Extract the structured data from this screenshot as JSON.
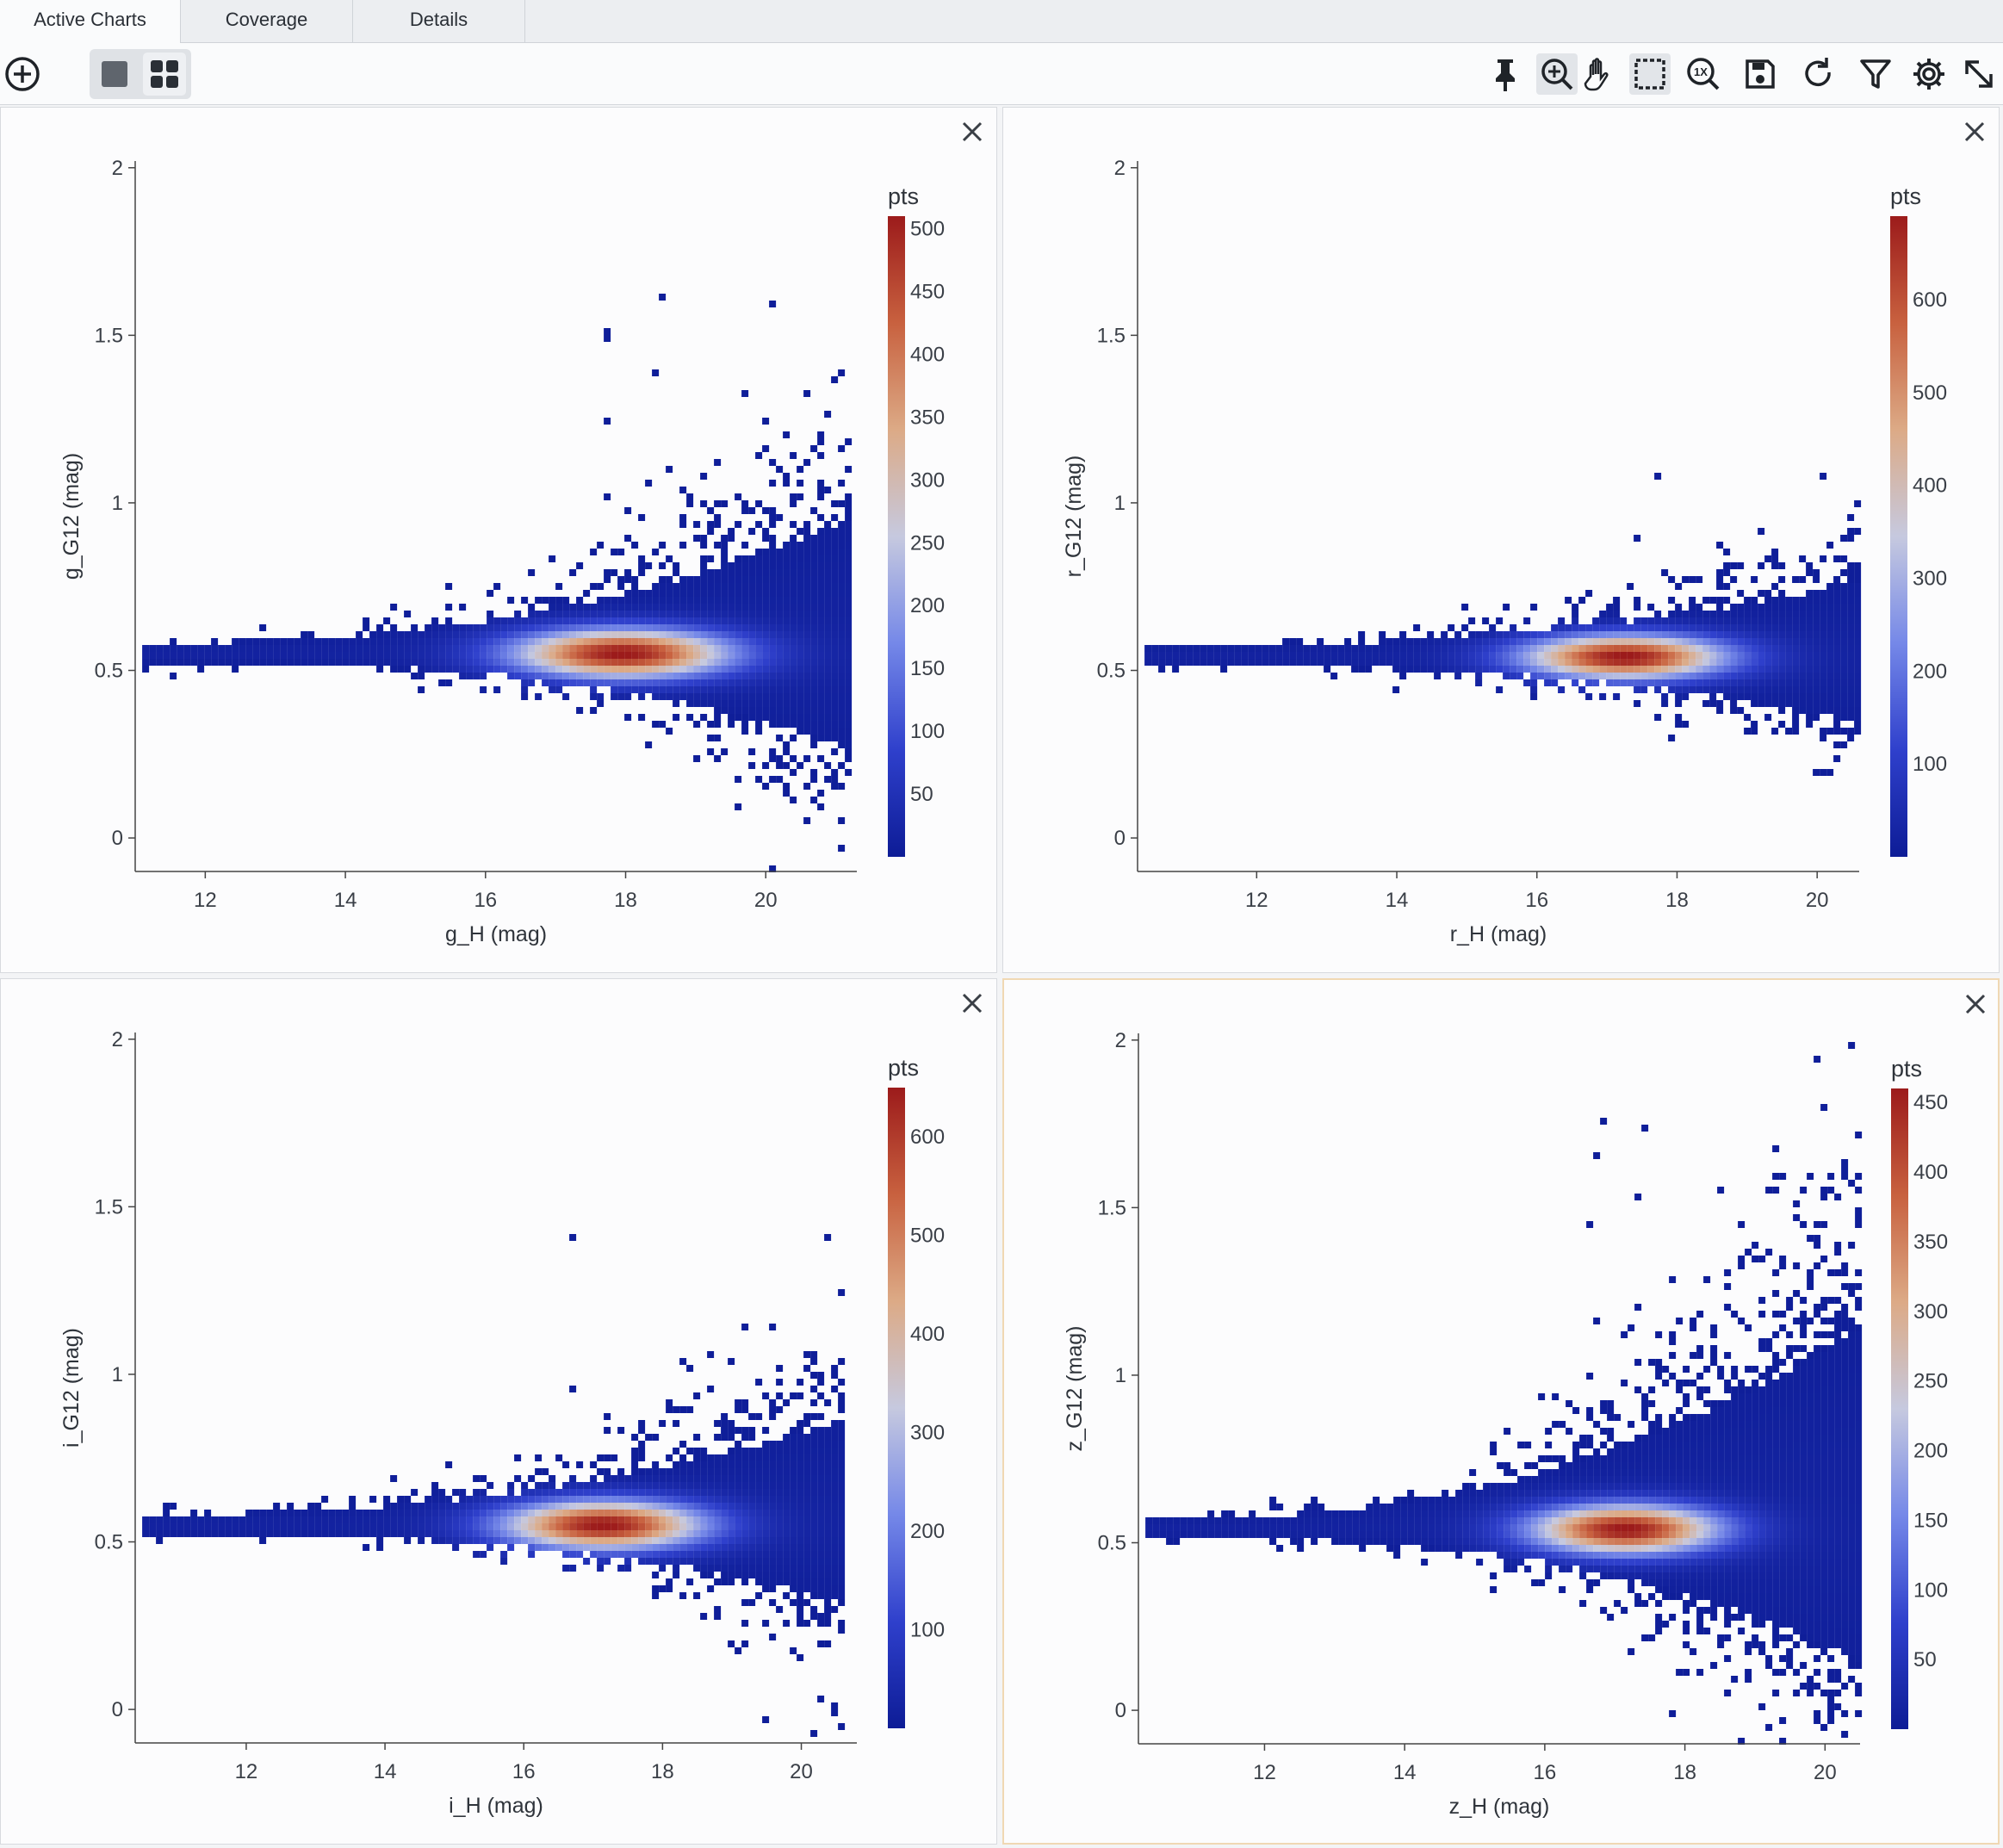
{
  "tabs": [
    {
      "label": "Active Charts",
      "active": true
    },
    {
      "label": "Coverage",
      "active": false
    },
    {
      "label": "Details",
      "active": false
    }
  ],
  "toolbar": {
    "left_icons": [
      "add-chart-icon"
    ],
    "layout_icons": [
      "single-layout-icon",
      "grid-layout-icon"
    ],
    "right_icons": [
      "pin-icon",
      "zoom-in-icon",
      "pan-icon",
      "select-region-icon",
      "zoom-1x-icon",
      "save-icon",
      "restore-icon",
      "filter-icon",
      "settings-icon",
      "expand-icon"
    ]
  },
  "colorscale": [
    "#0d1c96",
    "#2f40cc",
    "#7588e8",
    "#c6c9df",
    "#dcaa86",
    "#c8613f",
    "#9c1b1b"
  ],
  "charts": [
    {
      "type": "heatmap",
      "xlabel": "g_H (mag)",
      "ylabel": "g_G12 (mag)",
      "xlim": [
        11,
        21.3
      ],
      "ylim": [
        -0.1,
        2.02
      ],
      "x_ticks": [
        12,
        14,
        16,
        18,
        20
      ],
      "y_ticks": [
        0,
        0.5,
        1,
        1.5,
        2
      ],
      "y_tick_labels": [
        "0",
        "0.5",
        "1",
        "1.5",
        "2"
      ],
      "colorbar_title": "pts",
      "colorbar_max": 510,
      "colorbar_ticks": [
        50,
        100,
        150,
        200,
        250,
        300,
        350,
        400,
        450,
        500
      ],
      "density": {
        "x_start": 11.1,
        "x_end": 21.2,
        "center_x": 17.9,
        "center_y": 0.56,
        "core_x_spread": 1.5,
        "core_y_spread": 0.05,
        "upper_spread_max": 0.55,
        "lower_spread_max": 0.38,
        "outlier_max_y": 1.64
      }
    },
    {
      "type": "heatmap",
      "xlabel": "r_H (mag)",
      "ylabel": "r_G12 (mag)",
      "xlim": [
        10.3,
        20.6
      ],
      "ylim": [
        -0.1,
        2.02
      ],
      "x_ticks": [
        12,
        14,
        16,
        18,
        20
      ],
      "y_ticks": [
        0,
        0.5,
        1,
        1.5,
        2
      ],
      "y_tick_labels": [
        "0",
        "0.5",
        "1",
        "1.5",
        "2"
      ],
      "colorbar_title": "pts",
      "colorbar_max": 690,
      "colorbar_ticks": [
        100,
        200,
        300,
        400,
        500,
        600
      ],
      "density": {
        "x_start": 10.4,
        "x_end": 20.6,
        "center_x": 17.2,
        "center_y": 0.55,
        "core_x_spread": 1.4,
        "core_y_spread": 0.045,
        "upper_spread_max": 0.28,
        "lower_spread_max": 0.25,
        "outlier_max_y": 1.12
      }
    },
    {
      "type": "heatmap",
      "xlabel": "i_H (mag)",
      "ylabel": "i_G12 (mag)",
      "xlim": [
        10.4,
        20.8
      ],
      "ylim": [
        -0.1,
        2.02
      ],
      "x_ticks": [
        12,
        14,
        16,
        18,
        20
      ],
      "y_ticks": [
        0,
        0.5,
        1,
        1.5,
        2
      ],
      "y_tick_labels": [
        "0",
        "0.5",
        "1",
        "1.5",
        "2"
      ],
      "colorbar_title": "pts",
      "colorbar_max": 650,
      "colorbar_ticks": [
        100,
        200,
        300,
        400,
        500,
        600
      ],
      "density": {
        "x_start": 10.5,
        "x_end": 20.6,
        "center_x": 17.1,
        "center_y": 0.56,
        "core_x_spread": 1.4,
        "core_y_spread": 0.05,
        "upper_spread_max": 0.42,
        "lower_spread_max": 0.3,
        "outlier_max_y": 1.45
      }
    },
    {
      "type": "heatmap",
      "xlabel": "z_H (mag)",
      "ylabel": "z_G12 (mag)",
      "xlim": [
        10.2,
        20.5
      ],
      "ylim": [
        -0.1,
        2.02
      ],
      "x_ticks": [
        12,
        14,
        16,
        18,
        20
      ],
      "y_ticks": [
        0,
        0.5,
        1,
        1.5,
        2
      ],
      "y_tick_labels": [
        "0",
        "0.5",
        "1",
        "1.5",
        "2"
      ],
      "colorbar_title": "pts",
      "colorbar_max": 460,
      "colorbar_ticks": [
        50,
        100,
        150,
        200,
        250,
        300,
        350,
        400,
        450
      ],
      "density": {
        "x_start": 10.3,
        "x_end": 20.5,
        "center_x": 17.1,
        "center_y": 0.55,
        "core_x_spread": 1.3,
        "core_y_spread": 0.05,
        "upper_spread_max": 0.85,
        "lower_spread_max": 0.55,
        "outlier_max_y": 2.0
      }
    }
  ]
}
